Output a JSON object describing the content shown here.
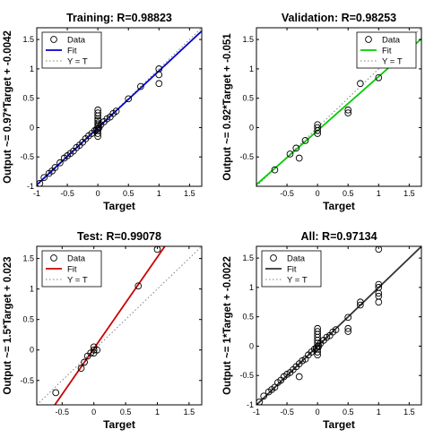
{
  "figure": {
    "background": "#ffffff"
  },
  "chart_data": [
    {
      "type": "scatter",
      "title": "Training: R=0.98823",
      "xlabel": "Target",
      "ylabel": "Output ~= 0.97*Target + -0.0042",
      "xlim": [
        -1,
        1.7
      ],
      "ylim": [
        -1,
        1.7
      ],
      "xticks": [
        "-1",
        "-0.5",
        "0",
        "0.5",
        "1",
        "1.5"
      ],
      "yticks": [
        "-1",
        "-0.5",
        "0",
        "0.5",
        "1",
        "1.5"
      ],
      "grid": false,
      "legend": {
        "position": "top-left",
        "entries": [
          "Data",
          "Fit",
          "Y = T"
        ]
      },
      "fit": {
        "slope": 0.97,
        "intercept": -0.0042,
        "color": "#0000cc"
      },
      "identity_color": "#808080",
      "marker_color": "#000000",
      "points": [
        [
          -0.95,
          -0.95
        ],
        [
          -0.88,
          -0.85
        ],
        [
          -0.8,
          -0.78
        ],
        [
          -0.75,
          -0.74
        ],
        [
          -0.7,
          -0.68
        ],
        [
          -0.62,
          -0.6
        ],
        [
          -0.55,
          -0.52
        ],
        [
          -0.5,
          -0.48
        ],
        [
          -0.45,
          -0.44
        ],
        [
          -0.4,
          -0.4
        ],
        [
          -0.35,
          -0.34
        ],
        [
          -0.3,
          -0.3
        ],
        [
          -0.25,
          -0.25
        ],
        [
          -0.2,
          -0.19
        ],
        [
          -0.15,
          -0.14
        ],
        [
          -0.1,
          -0.1
        ],
        [
          -0.05,
          -0.05
        ],
        [
          -0.02,
          -0.03
        ],
        [
          0,
          0.3
        ],
        [
          0,
          0.25
        ],
        [
          0,
          0.2
        ],
        [
          0,
          0.15
        ],
        [
          0,
          0.12
        ],
        [
          0,
          0.08
        ],
        [
          0,
          0.05
        ],
        [
          0,
          0.02
        ],
        [
          0,
          -0.02
        ],
        [
          0,
          -0.05
        ],
        [
          0,
          -0.1
        ],
        [
          0,
          -0.15
        ],
        [
          0.02,
          0
        ],
        [
          0.05,
          0.05
        ],
        [
          0.1,
          0.1
        ],
        [
          0.15,
          0.15
        ],
        [
          0.2,
          0.18
        ],
        [
          0.25,
          0.24
        ],
        [
          0.3,
          0.28
        ],
        [
          0.5,
          0.49
        ],
        [
          0.7,
          0.7
        ],
        [
          1,
          1
        ],
        [
          1,
          0.75
        ],
        [
          1,
          0.9
        ]
      ]
    },
    {
      "type": "scatter",
      "title": "Validation: R=0.98253",
      "xlabel": "Target",
      "ylabel": "Output ~= 0.92*Target + -0.051",
      "xlim": [
        -1,
        1.7
      ],
      "ylim": [
        -1,
        1.7
      ],
      "xticks": [
        "-0.5",
        "0",
        "0.5",
        "1",
        "1.5"
      ],
      "yticks": [
        "-0.5",
        "0",
        "0.5",
        "1",
        "1.5"
      ],
      "grid": false,
      "legend": {
        "position": "top-right",
        "entries": [
          "Data",
          "Fit",
          "Y = T"
        ]
      },
      "fit": {
        "slope": 0.92,
        "intercept": -0.051,
        "color": "#00cc00"
      },
      "identity_color": "#808080",
      "marker_color": "#000000",
      "points": [
        [
          -0.7,
          -0.72
        ],
        [
          -0.45,
          -0.45
        ],
        [
          -0.35,
          -0.35
        ],
        [
          -0.3,
          -0.52
        ],
        [
          -0.2,
          -0.22
        ],
        [
          0,
          0.05
        ],
        [
          0,
          0
        ],
        [
          0,
          -0.05
        ],
        [
          0,
          -0.1
        ],
        [
          0.5,
          0.3
        ],
        [
          0.5,
          0.25
        ],
        [
          0.7,
          0.75
        ],
        [
          1,
          0.85
        ]
      ]
    },
    {
      "type": "scatter",
      "title": "Test: R=0.99078",
      "xlabel": "Target",
      "ylabel": "Output ~= 1.5*Target + 0.023",
      "xlim": [
        -0.9,
        1.7
      ],
      "ylim": [
        -0.9,
        1.7
      ],
      "xticks": [
        "-0.5",
        "0",
        "0.5",
        "1",
        "1.5"
      ],
      "yticks": [
        "-0.5",
        "0",
        "0.5",
        "1",
        "1.5"
      ],
      "grid": false,
      "legend": {
        "position": "top-left",
        "entries": [
          "Data",
          "Fit",
          "Y = T"
        ]
      },
      "fit": {
        "slope": 1.5,
        "intercept": 0.023,
        "color": "#cc0000"
      },
      "identity_color": "#808080",
      "marker_color": "#000000",
      "points": [
        [
          -0.6,
          -0.7
        ],
        [
          -0.2,
          -0.3
        ],
        [
          -0.15,
          -0.2
        ],
        [
          -0.1,
          -0.1
        ],
        [
          -0.05,
          -0.05
        ],
        [
          0,
          0
        ],
        [
          0,
          0.05
        ],
        [
          0,
          -0.05
        ],
        [
          0.05,
          0
        ],
        [
          0.7,
          1.05
        ],
        [
          1,
          1.65
        ]
      ]
    },
    {
      "type": "scatter",
      "title": "All: R=0.97134",
      "xlabel": "Target",
      "ylabel": "Output ~= 1*Target + -0.0022",
      "xlim": [
        -1,
        1.7
      ],
      "ylim": [
        -1,
        1.7
      ],
      "xticks": [
        "-1",
        "-0.5",
        "0",
        "0.5",
        "1",
        "1.5"
      ],
      "yticks": [
        "-1",
        "-0.5",
        "0",
        "0.5",
        "1",
        "1.5"
      ],
      "grid": false,
      "legend": {
        "position": "top-left",
        "entries": [
          "Data",
          "Fit",
          "Y = T"
        ]
      },
      "fit": {
        "slope": 1.0,
        "intercept": -0.0022,
        "color": "#333333"
      },
      "identity_color": "#808080",
      "marker_color": "#000000",
      "points": [
        [
          -0.95,
          -0.95
        ],
        [
          -0.88,
          -0.85
        ],
        [
          -0.8,
          -0.78
        ],
        [
          -0.75,
          -0.74
        ],
        [
          -0.7,
          -0.7
        ],
        [
          -0.65,
          -0.62
        ],
        [
          -0.6,
          -0.58
        ],
        [
          -0.55,
          -0.52
        ],
        [
          -0.5,
          -0.48
        ],
        [
          -0.45,
          -0.45
        ],
        [
          -0.4,
          -0.4
        ],
        [
          -0.35,
          -0.35
        ],
        [
          -0.3,
          -0.3
        ],
        [
          -0.3,
          -0.52
        ],
        [
          -0.25,
          -0.25
        ],
        [
          -0.2,
          -0.22
        ],
        [
          -0.15,
          -0.15
        ],
        [
          -0.1,
          -0.1
        ],
        [
          -0.05,
          -0.05
        ],
        [
          -0.02,
          -0.03
        ],
        [
          0,
          0.3
        ],
        [
          0,
          0.25
        ],
        [
          0,
          0.2
        ],
        [
          0,
          0.15
        ],
        [
          0,
          0.1
        ],
        [
          0,
          0.05
        ],
        [
          0,
          0
        ],
        [
          0,
          -0.05
        ],
        [
          0,
          -0.1
        ],
        [
          0,
          -0.15
        ],
        [
          0.02,
          0
        ],
        [
          0.05,
          0.05
        ],
        [
          0.1,
          0.1
        ],
        [
          0.15,
          0.15
        ],
        [
          0.2,
          0.18
        ],
        [
          0.25,
          0.24
        ],
        [
          0.3,
          0.28
        ],
        [
          0.5,
          0.49
        ],
        [
          0.5,
          0.3
        ],
        [
          0.5,
          0.25
        ],
        [
          0.7,
          0.7
        ],
        [
          0.7,
          0.75
        ],
        [
          1,
          1
        ],
        [
          1,
          0.9
        ],
        [
          1,
          0.85
        ],
        [
          1,
          0.75
        ],
        [
          1,
          1.05
        ],
        [
          1,
          1.65
        ]
      ]
    }
  ]
}
